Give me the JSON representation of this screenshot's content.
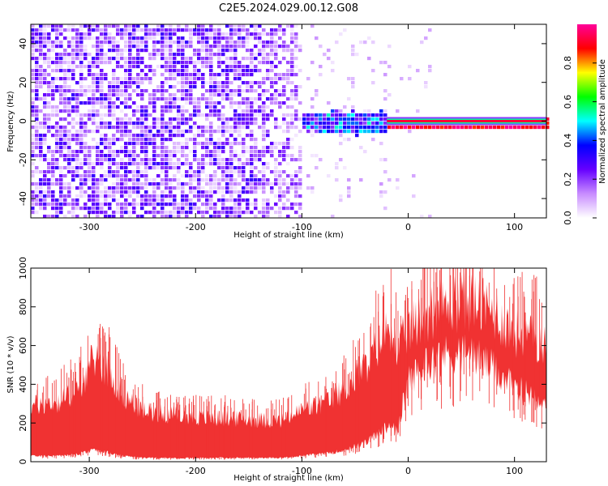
{
  "title": "C2E5.2024.029.00.12.G08",
  "chart_data": [
    {
      "type": "heatmap",
      "xlabel": "Height of straight line (km)",
      "ylabel": "Frequency (Hz)",
      "xlim": [
        -355,
        130
      ],
      "ylim": [
        -50,
        50
      ],
      "xticks": [
        -300,
        -200,
        -100,
        0,
        100
      ],
      "yticks": [
        -40,
        -20,
        0,
        20,
        40
      ],
      "colorbar": {
        "label": "Normalized spectral amplitude",
        "range": [
          0.0,
          1.0
        ],
        "ticks": [
          "0.0",
          "0.2",
          "0.4",
          "0.6",
          "0.8"
        ],
        "colors": [
          "#ffffff",
          "#c88cff",
          "#6600ff",
          "#0000ff",
          "#00ffff",
          "#00ff00",
          "#ffff00",
          "#ff0000",
          "#ff0099"
        ]
      },
      "regions": [
        {
          "x_from": -355,
          "x_to": -100,
          "description_value": "broadband noise",
          "mean_amplitude": 0.15
        },
        {
          "x_from": -100,
          "x_to": -20,
          "center_freq": 0,
          "mean_amplitude": 0.3
        },
        {
          "x_from": -20,
          "x_to": 130,
          "center_freq": 0,
          "peak_amplitude": 1.0
        }
      ]
    },
    {
      "type": "area",
      "xlabel": "Height of straight line (km)",
      "ylabel": "SNR (10 * v/v)",
      "xlim": [
        -355,
        130
      ],
      "ylim": [
        0,
        1000
      ],
      "xticks": [
        -300,
        -200,
        -100,
        0,
        100
      ],
      "yticks": [
        0,
        200,
        400,
        600,
        800,
        1000
      ],
      "color": "#f03232",
      "envelope": {
        "x": [
          -355,
          -330,
          -310,
          -295,
          -285,
          -270,
          -250,
          -200,
          -150,
          -120,
          -100,
          -80,
          -60,
          -40,
          -25,
          -15,
          -10,
          -5,
          0,
          20,
          40,
          60,
          80,
          100,
          130
        ],
        "upper": [
          330,
          350,
          420,
          620,
          560,
          400,
          300,
          260,
          250,
          240,
          300,
          340,
          420,
          560,
          720,
          820,
          600,
          720,
          780,
          880,
          930,
          950,
          880,
          760,
          700
        ],
        "lower": [
          30,
          30,
          40,
          60,
          50,
          30,
          20,
          20,
          20,
          20,
          30,
          40,
          60,
          100,
          160,
          200,
          140,
          300,
          420,
          520,
          560,
          560,
          480,
          380,
          320
        ]
      }
    }
  ]
}
